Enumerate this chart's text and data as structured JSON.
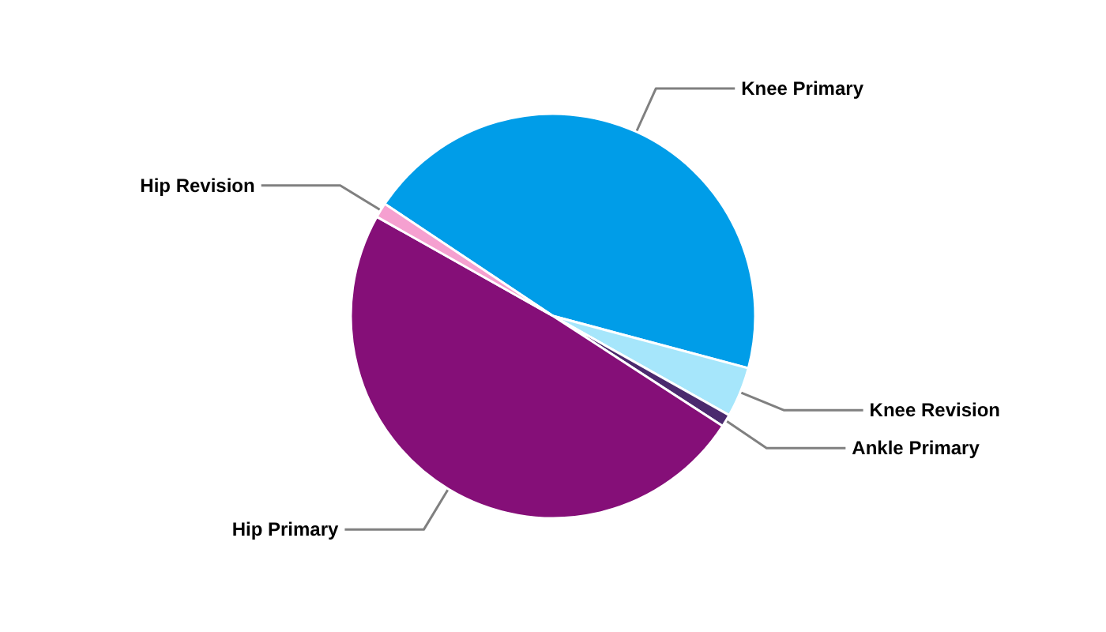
{
  "chart_data": {
    "type": "pie",
    "categories": [
      "Knee Primary",
      "Knee Revision",
      "Ankle Primary",
      "Hip Primary",
      "Hip Revision"
    ],
    "values": [
      44.8,
      4.0,
      1.0,
      49.0,
      1.2
    ],
    "colors": [
      "#009de8",
      "#a6e6fb",
      "#4b2a6e",
      "#850f78",
      "#f5a0d0"
    ]
  }
}
